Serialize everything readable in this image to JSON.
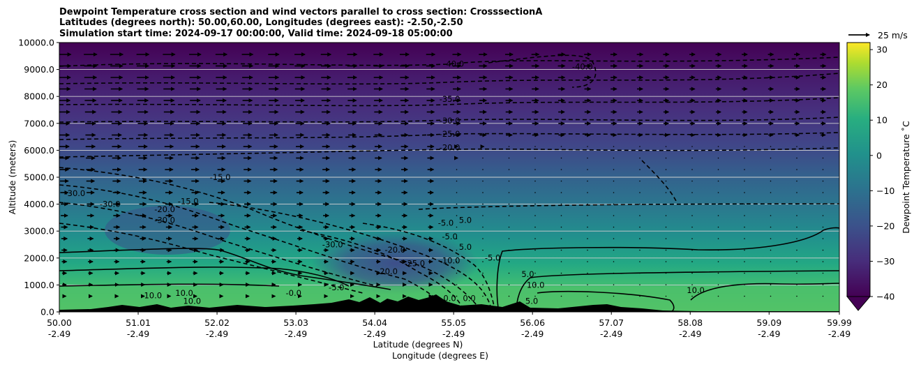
{
  "chart_data": {
    "type": "contour",
    "title_lines": [
      "Dewpoint Temperature cross section and wind vectors parallel to cross section: CrosssectionA",
      "Latitudes (degrees north): 50.00,60.00, Longitudes (degrees east): -2.50,-2.50",
      "Simulation start time: 2024-09-17 00:00:00, Valid time: 2024-09-18 05:00:00"
    ],
    "ylabel": "Altitude (meters)",
    "xlabel_lines": [
      "Latitude (degrees N)",
      "Longitude (degrees E)"
    ],
    "ylim": [
      0,
      10000
    ],
    "xlim": [
      50.0,
      59.99
    ],
    "y_ticks": [
      0,
      1000,
      2000,
      3000,
      4000,
      5000,
      6000,
      7000,
      8000,
      9000,
      10000
    ],
    "y_tick_labels": [
      "0.0",
      "1000.0",
      "2000.0",
      "3000.0",
      "4000.0",
      "5000.0",
      "6000.0",
      "7000.0",
      "8000.0",
      "9000.0",
      "10000.0"
    ],
    "x_ticks": [
      50.0,
      51.01,
      52.02,
      53.03,
      54.04,
      55.05,
      56.06,
      57.07,
      58.08,
      59.09,
      59.99
    ],
    "x_tick_lat_labels": [
      "50.00",
      "51.01",
      "52.02",
      "53.03",
      "54.04",
      "55.05",
      "56.06",
      "57.07",
      "58.08",
      "59.09",
      "59.99"
    ],
    "x_tick_lon_labels": [
      "-2.49",
      "-2.49",
      "-2.49",
      "-2.49",
      "-2.49",
      "-2.49",
      "-2.49",
      "-2.49",
      "-2.49",
      "-2.49",
      "-2.49"
    ],
    "grid": "horizontal",
    "colorbar": {
      "label": "Dewpoint Temperature ˚C",
      "range": [
        -40,
        32
      ],
      "ticks": [
        -40,
        -30,
        -20,
        -10,
        0,
        10,
        20,
        30
      ],
      "tick_labels": [
        "−40",
        "−30",
        "−20",
        "−10",
        "0",
        "10",
        "20",
        "30"
      ],
      "colormap": "viridis",
      "extend": "min"
    },
    "quiver_key_label": "25 m/s",
    "dewpoint_profile": [
      {
        "altitude": 0,
        "value": 10
      },
      {
        "altitude": 1000,
        "value": 6
      },
      {
        "altitude": 2000,
        "value": -2
      },
      {
        "altitude": 3000,
        "value": -8
      },
      {
        "altitude": 4000,
        "value": -12
      },
      {
        "altitude": 5000,
        "value": -16
      },
      {
        "altitude": 6000,
        "value": -20
      },
      {
        "altitude": 7000,
        "value": -25
      },
      {
        "altitude": 8000,
        "value": -30
      },
      {
        "altitude": 9000,
        "value": -36
      },
      {
        "altitude": 10000,
        "value": -42
      }
    ],
    "dry_region": {
      "lat": 54.3,
      "altitude": 1800,
      "value": -30
    },
    "contour_labels": [
      {
        "text": "-40.0",
        "lat": 55.05,
        "altitude": 9100
      },
      {
        "text": "-40.0",
        "lat": 56.7,
        "altitude": 9000
      },
      {
        "text": "-35.0",
        "lat": 55.0,
        "altitude": 7800
      },
      {
        "text": "-30.0",
        "lat": 55.0,
        "altitude": 7000
      },
      {
        "text": "-25.0",
        "lat": 55.0,
        "altitude": 6500
      },
      {
        "text": "-20.0",
        "lat": 55.0,
        "altitude": 6000
      },
      {
        "text": "-15.0",
        "lat": 52.06,
        "altitude": 4900
      },
      {
        "text": "-15.0",
        "lat": 51.65,
        "altitude": 4000
      },
      {
        "text": "-30.0",
        "lat": 50.2,
        "altitude": 4300
      },
      {
        "text": "-30.0",
        "lat": 50.65,
        "altitude": 3900
      },
      {
        "text": "-20.0",
        "lat": 51.35,
        "altitude": 3700
      },
      {
        "text": "-30.0",
        "lat": 51.35,
        "altitude": 3300
      },
      {
        "text": "-5.0",
        "lat": 54.95,
        "altitude": 3200
      },
      {
        "text": "5.0",
        "lat": 55.2,
        "altitude": 3300
      },
      {
        "text": "-5.0",
        "lat": 55.0,
        "altitude": 2700
      },
      {
        "text": "5.0",
        "lat": 55.2,
        "altitude": 2300
      },
      {
        "text": "-5.0",
        "lat": 55.55,
        "altitude": 1900
      },
      {
        "text": "-30.0",
        "lat": 53.5,
        "altitude": 2400
      },
      {
        "text": "-20.0",
        "lat": 54.3,
        "altitude": 2200
      },
      {
        "text": "-25.0",
        "lat": 54.55,
        "altitude": 1700
      },
      {
        "text": "-20.0",
        "lat": 54.2,
        "altitude": 1400
      },
      {
        "text": "-10.0",
        "lat": 55.0,
        "altitude": 1800
      },
      {
        "text": "5.0",
        "lat": 56.0,
        "altitude": 1300
      },
      {
        "text": "10.0",
        "lat": 51.2,
        "altitude": 500
      },
      {
        "text": "10.0",
        "lat": 51.6,
        "altitude": 600
      },
      {
        "text": "10.0",
        "lat": 51.7,
        "altitude": 300
      },
      {
        "text": "-0.0",
        "lat": 53.0,
        "altitude": 600
      },
      {
        "text": "-5.0",
        "lat": 53.55,
        "altitude": 800
      },
      {
        "text": "0.0",
        "lat": 55.0,
        "altitude": 400
      },
      {
        "text": "0.0",
        "lat": 55.25,
        "altitude": 400
      },
      {
        "text": "10.0",
        "lat": 56.1,
        "altitude": 900
      },
      {
        "text": "5.0",
        "lat": 56.05,
        "altitude": 300
      },
      {
        "text": "10.0",
        "lat": 58.15,
        "altitude": 700
      }
    ]
  }
}
